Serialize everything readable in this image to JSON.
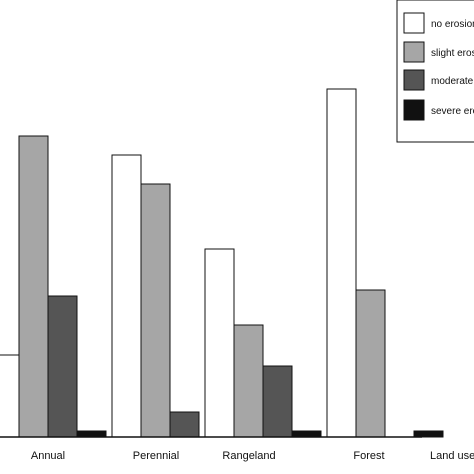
{
  "chart_data": {
    "type": "bar",
    "title": "",
    "xlabel": "Land use",
    "ylabel": "",
    "categories": [
      "Annual",
      "Perennial",
      "Rangeland",
      "Forest"
    ],
    "series": [
      {
        "name": "no erosion",
        "color": "#ffffff",
        "values": [
          82,
          282,
          188,
          348
        ]
      },
      {
        "name": "slight erosion",
        "color": "#a6a6a6",
        "values": [
          301,
          253,
          112,
          147
        ]
      },
      {
        "name": "moderate erosion",
        "color": "#555555",
        "values": [
          141,
          25,
          71,
          0
        ]
      },
      {
        "name": "severe erosion",
        "color": "#111111",
        "values": [
          6,
          0,
          6,
          6
        ]
      }
    ],
    "ylim": [
      0,
      390
    ],
    "grid": false,
    "legend_position": "top-right"
  }
}
